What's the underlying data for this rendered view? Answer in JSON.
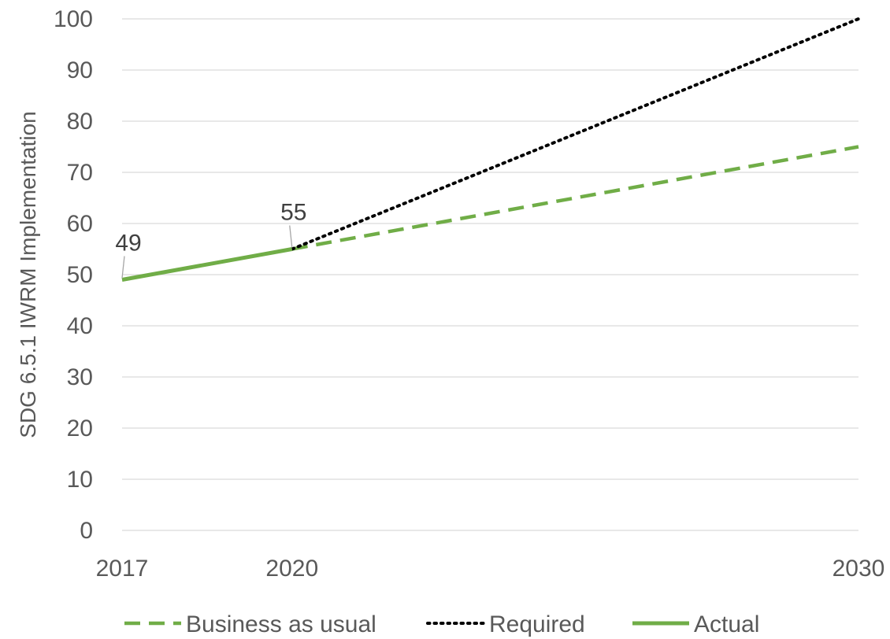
{
  "chart_data": {
    "type": "line",
    "title": "",
    "xlabel": "",
    "ylabel": "SDG 6.5.1 IWRM Implementation",
    "ylim": [
      0,
      100
    ],
    "yticks": [
      0,
      10,
      20,
      30,
      40,
      50,
      60,
      70,
      80,
      90,
      100
    ],
    "xlim": [
      2017,
      2030
    ],
    "xticks": [
      2017,
      2020,
      2030
    ],
    "grid": true,
    "legend_position": "bottom",
    "series": [
      {
        "name": "Business as usual",
        "style": "dashed",
        "color": "#70ad47",
        "x": [
          2020,
          2030
        ],
        "y": [
          55,
          75
        ]
      },
      {
        "name": "Required",
        "style": "dotted",
        "color": "#000000",
        "x": [
          2020,
          2030
        ],
        "y": [
          55,
          100
        ]
      },
      {
        "name": "Actual",
        "style": "solid",
        "color": "#70ad47",
        "x": [
          2017,
          2020
        ],
        "y": [
          49,
          55
        ]
      }
    ],
    "data_labels": [
      {
        "x": 2017,
        "y": 49,
        "text": "49"
      },
      {
        "x": 2020,
        "y": 55,
        "text": "55"
      }
    ]
  }
}
